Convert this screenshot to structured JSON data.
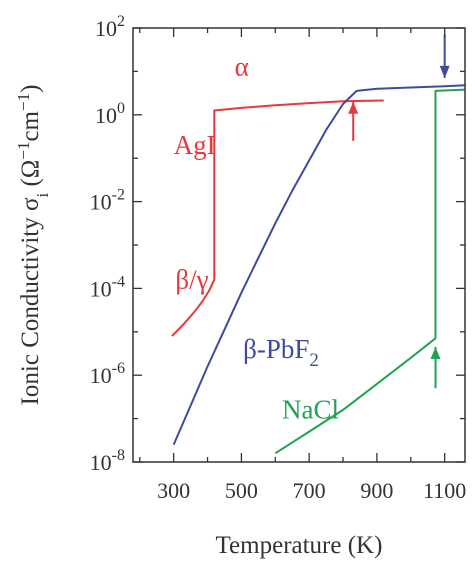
{
  "chart_data": {
    "type": "line",
    "xlabel": "Temperature (K)",
    "ylabel": "Ionic Conductivity σ",
    "ylabel_sub": "i",
    "ylabel_unit_open": " (Ω",
    "ylabel_unit_mid": "cm",
    "ylabel_unit_close": ")",
    "ylabel_exp": "−1",
    "xlim": [
      180,
      1160
    ],
    "ylim_log10": [
      -8,
      2
    ],
    "x_ticks": [
      300,
      500,
      700,
      900,
      1100
    ],
    "x_tick_labels": [
      "300",
      "500",
      "700",
      "900",
      "1100"
    ],
    "y_ticks_log10": [
      2,
      0,
      -2,
      -4,
      -6,
      -8
    ],
    "y_tick_base": "10",
    "y_tick_exponents": [
      "2",
      "0",
      "-2",
      "-4",
      "-6",
      "-8"
    ],
    "grid": false,
    "series": [
      {
        "name": "AgI",
        "color": "#e8383d",
        "points": [
          [
            295,
            -5.1
          ],
          [
            330,
            -4.82
          ],
          [
            360,
            -4.55
          ],
          [
            385,
            -4.3
          ],
          [
            405,
            -4.05
          ],
          [
            420,
            -3.8
          ],
          [
            420,
            0.1
          ],
          [
            500,
            0.16
          ],
          [
            600,
            0.22
          ],
          [
            700,
            0.27
          ],
          [
            800,
            0.31
          ],
          [
            920,
            0.33
          ]
        ]
      },
      {
        "name": "β-PbF",
        "color": "#3e4a9e",
        "points": [
          [
            300,
            -7.6
          ],
          [
            350,
            -6.7
          ],
          [
            400,
            -5.8
          ],
          [
            450,
            -4.95
          ],
          [
            500,
            -4.1
          ],
          [
            550,
            -3.3
          ],
          [
            600,
            -2.5
          ],
          [
            650,
            -1.75
          ],
          [
            700,
            -1.05
          ],
          [
            750,
            -0.35
          ],
          [
            800,
            0.25
          ],
          [
            840,
            0.55
          ],
          [
            900,
            0.6
          ],
          [
            1000,
            0.63
          ],
          [
            1100,
            0.66
          ],
          [
            1160,
            0.68
          ]
        ]
      },
      {
        "name": "NaCl",
        "color": "#20a352",
        "points": [
          [
            600,
            -7.8
          ],
          [
            700,
            -7.3
          ],
          [
            800,
            -6.8
          ],
          [
            900,
            -6.2
          ],
          [
            1000,
            -5.6
          ],
          [
            1073,
            -5.15
          ],
          [
            1073,
            0.55
          ],
          [
            1160,
            0.58
          ]
        ]
      }
    ],
    "annotations": [
      {
        "text": "α",
        "color": "#e8383d",
        "x": 480,
        "y": 0.9
      },
      {
        "text": "AgI",
        "color": "#e8383d",
        "x": 300,
        "y": -0.9
      },
      {
        "text": "β/γ",
        "color": "#e8383d",
        "x": 305,
        "y": -4.0
      },
      {
        "text": "β-PbF",
        "sub": "2",
        "color": "#3e4a9e",
        "x": 505,
        "y": -5.6
      },
      {
        "text": "NaCl",
        "color": "#20a352",
        "x": 620,
        "y": -7.0
      }
    ],
    "arrows": [
      {
        "color": "#e8383d",
        "x": 830,
        "y_from": -0.6,
        "y_to": 0.3,
        "direction": "up"
      },
      {
        "color": "#3e4a9e",
        "x": 1100,
        "y_from": 1.85,
        "y_to": 0.85,
        "direction": "down"
      },
      {
        "color": "#20a352",
        "x": 1073,
        "y_from": -6.3,
        "y_to": -5.35,
        "direction": "up"
      }
    ]
  }
}
